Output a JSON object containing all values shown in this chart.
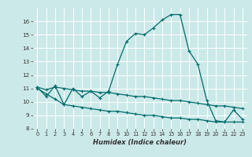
{
  "title": "",
  "xlabel": "Humidex (Indice chaleur)",
  "ylabel": "",
  "bg_color": "#cce9e9",
  "line_color": "#006b6b",
  "grid_color": "#ffffff",
  "xlim": [
    -0.5,
    23.5
  ],
  "ylim": [
    8,
    17
  ],
  "yticks": [
    8,
    9,
    10,
    11,
    12,
    13,
    14,
    15,
    16
  ],
  "xticks": [
    0,
    1,
    2,
    3,
    4,
    5,
    6,
    7,
    8,
    9,
    10,
    11,
    12,
    13,
    14,
    15,
    16,
    17,
    18,
    19,
    20,
    21,
    22,
    23
  ],
  "series1_x": [
    0,
    1,
    2,
    3,
    4,
    5,
    6,
    7,
    8,
    9,
    10,
    11,
    12,
    13,
    14,
    15,
    16,
    17,
    18,
    19,
    20,
    21,
    22,
    23
  ],
  "series1_y": [
    11.1,
    10.4,
    11.2,
    9.8,
    11.0,
    10.4,
    10.8,
    10.3,
    10.8,
    12.8,
    14.5,
    15.1,
    15.0,
    15.5,
    16.1,
    16.5,
    16.5,
    13.8,
    12.8,
    10.1,
    8.6,
    8.5,
    9.4,
    8.7
  ],
  "series2_x": [
    0,
    1,
    2,
    3,
    4,
    5,
    6,
    7,
    8,
    9,
    10,
    11,
    12,
    13,
    14,
    15,
    16,
    17,
    18,
    19,
    20,
    21,
    22,
    23
  ],
  "series2_y": [
    11.1,
    10.9,
    11.1,
    11.0,
    10.9,
    10.8,
    10.8,
    10.7,
    10.7,
    10.6,
    10.5,
    10.4,
    10.4,
    10.3,
    10.2,
    10.1,
    10.1,
    10.0,
    9.9,
    9.8,
    9.7,
    9.7,
    9.6,
    9.5
  ],
  "series3_x": [
    0,
    1,
    2,
    3,
    4,
    5,
    6,
    7,
    8,
    9,
    10,
    11,
    12,
    13,
    14,
    15,
    16,
    17,
    18,
    19,
    20,
    21,
    22,
    23
  ],
  "series3_y": [
    11.0,
    10.6,
    10.2,
    9.8,
    9.7,
    9.6,
    9.5,
    9.4,
    9.3,
    9.3,
    9.2,
    9.1,
    9.0,
    9.0,
    8.9,
    8.8,
    8.8,
    8.7,
    8.7,
    8.6,
    8.5,
    8.5,
    8.5,
    8.5
  ]
}
